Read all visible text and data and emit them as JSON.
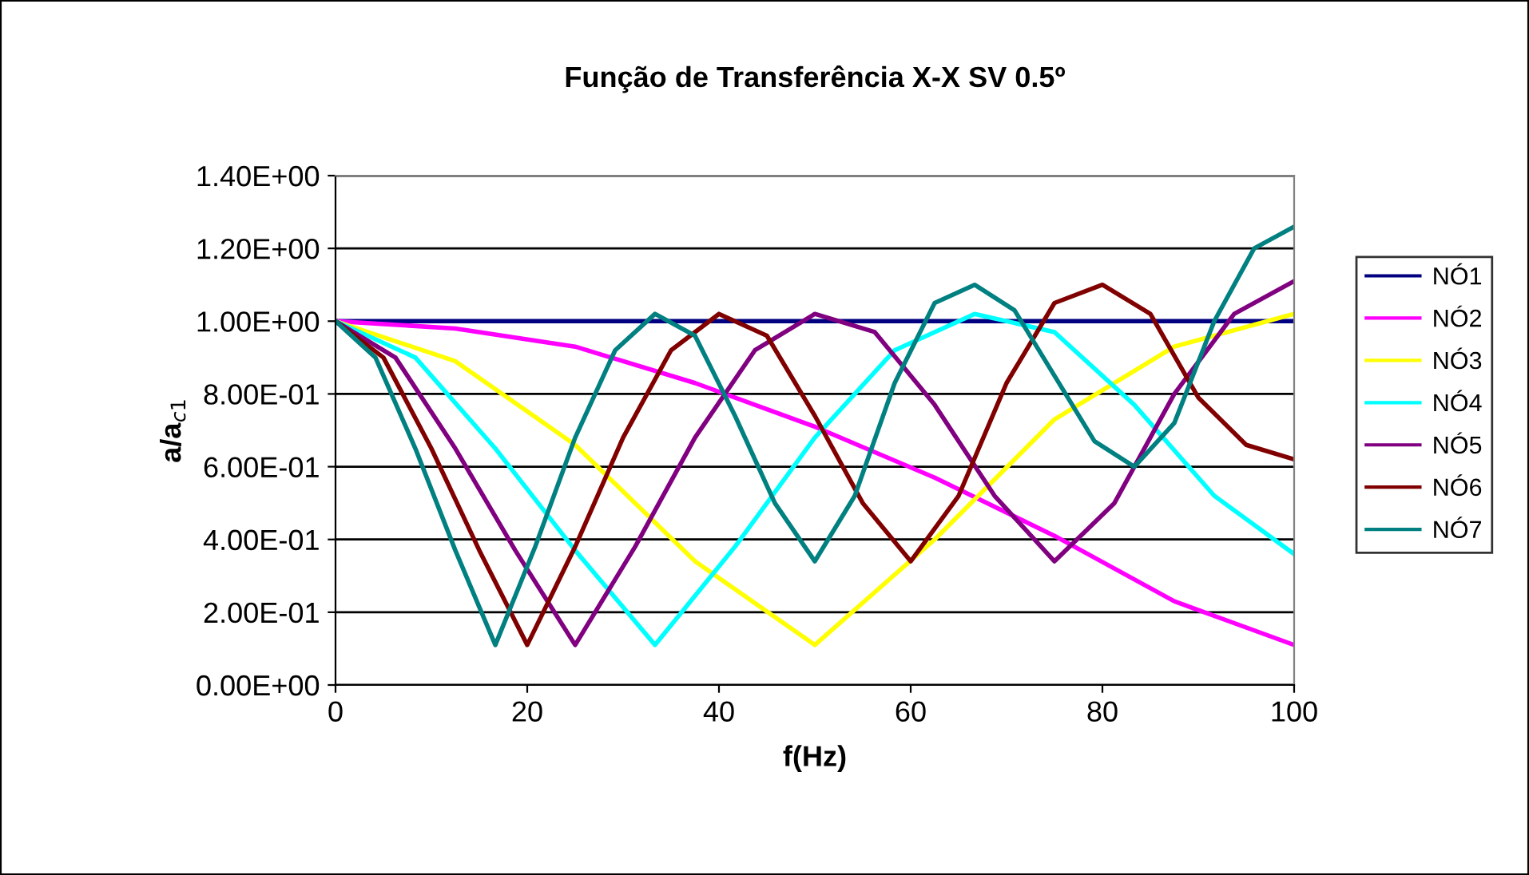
{
  "chart_data": {
    "type": "line",
    "title": "Função de Transferência X-X SV 0.5º",
    "xlabel": "f(Hz)",
    "ylabel": "a/a$_{c1}$",
    "xlim": [
      0,
      100
    ],
    "xticks": [
      0,
      20,
      40,
      60,
      80,
      100
    ],
    "ylim": [
      0,
      1.4
    ],
    "yticks": [
      {
        "value": 0,
        "label": "0.00E+00"
      },
      {
        "value": 0.2,
        "label": "2.00E-01"
      },
      {
        "value": 0.4,
        "label": "4.00E-01"
      },
      {
        "value": 0.6,
        "label": "6.00E-01"
      },
      {
        "value": 0.8,
        "label": "8.00E-01"
      },
      {
        "value": 1.0,
        "label": "1.00E+00"
      },
      {
        "value": 1.2,
        "label": "1.20E+00"
      },
      {
        "value": 1.4,
        "label": "1.40E+00"
      }
    ],
    "grid": "y",
    "legend": "right",
    "marker": "none",
    "line_style": "solid",
    "series": [
      {
        "name": "NÓ1",
        "color": "#000080",
        "x": [
          0,
          100
        ],
        "values": [
          1.0,
          1.0
        ]
      },
      {
        "name": "NÓ2",
        "color": "#ff00ff",
        "x": [
          0,
          12.5,
          25,
          37.5,
          50,
          62.5,
          75,
          87.5,
          100
        ],
        "values": [
          1.0,
          0.98,
          0.93,
          0.83,
          0.71,
          0.57,
          0.41,
          0.23,
          0.11
        ]
      },
      {
        "name": "NÓ3",
        "color": "#ffff00",
        "x": [
          0,
          12.5,
          25,
          37.5,
          50,
          62.5,
          75,
          87.5,
          100
        ],
        "values": [
          1.0,
          0.89,
          0.66,
          0.34,
          0.11,
          0.4,
          0.73,
          0.93,
          1.02
        ]
      },
      {
        "name": "NÓ4",
        "color": "#00ffff",
        "x": [
          0,
          8.33,
          16.67,
          25,
          33.33,
          41.67,
          50,
          58.33,
          66.67,
          75,
          83.33,
          91.67,
          100
        ],
        "values": [
          1.0,
          0.9,
          0.65,
          0.37,
          0.11,
          0.38,
          0.68,
          0.92,
          1.02,
          0.97,
          0.77,
          0.52,
          0.36
        ]
      },
      {
        "name": "NÓ5",
        "color": "#800080",
        "x": [
          0,
          6.25,
          12.5,
          18.75,
          25,
          31.25,
          37.5,
          43.75,
          50,
          56.25,
          62.5,
          68.75,
          75,
          81.25,
          87.5,
          93.75,
          100
        ],
        "values": [
          1.0,
          0.9,
          0.65,
          0.37,
          0.11,
          0.38,
          0.68,
          0.92,
          1.02,
          0.97,
          0.77,
          0.52,
          0.34,
          0.5,
          0.8,
          1.02,
          1.11
        ]
      },
      {
        "name": "NÓ6",
        "color": "#800000",
        "x": [
          0,
          5,
          10,
          15,
          20,
          25,
          30,
          35,
          40,
          45,
          50,
          55,
          60,
          65,
          70,
          75,
          80,
          85,
          90,
          95,
          100
        ],
        "values": [
          1.0,
          0.9,
          0.65,
          0.37,
          0.11,
          0.38,
          0.68,
          0.92,
          1.02,
          0.96,
          0.74,
          0.5,
          0.34,
          0.52,
          0.83,
          1.05,
          1.1,
          1.02,
          0.79,
          0.66,
          0.62
        ]
      },
      {
        "name": "NÓ7",
        "color": "#008080",
        "x": [
          0,
          4.17,
          8.33,
          12.5,
          16.67,
          20.83,
          25,
          29.17,
          33.33,
          37.5,
          41.67,
          45.83,
          50,
          54.17,
          58.33,
          62.5,
          66.67,
          70.83,
          75,
          79.17,
          83.33,
          87.5,
          91.67,
          95.83,
          100
        ],
        "values": [
          1.0,
          0.9,
          0.65,
          0.37,
          0.11,
          0.38,
          0.68,
          0.92,
          1.02,
          0.96,
          0.74,
          0.5,
          0.34,
          0.52,
          0.83,
          1.05,
          1.1,
          1.03,
          0.85,
          0.67,
          0.6,
          0.72,
          1.0,
          1.2,
          1.26
        ]
      }
    ]
  }
}
